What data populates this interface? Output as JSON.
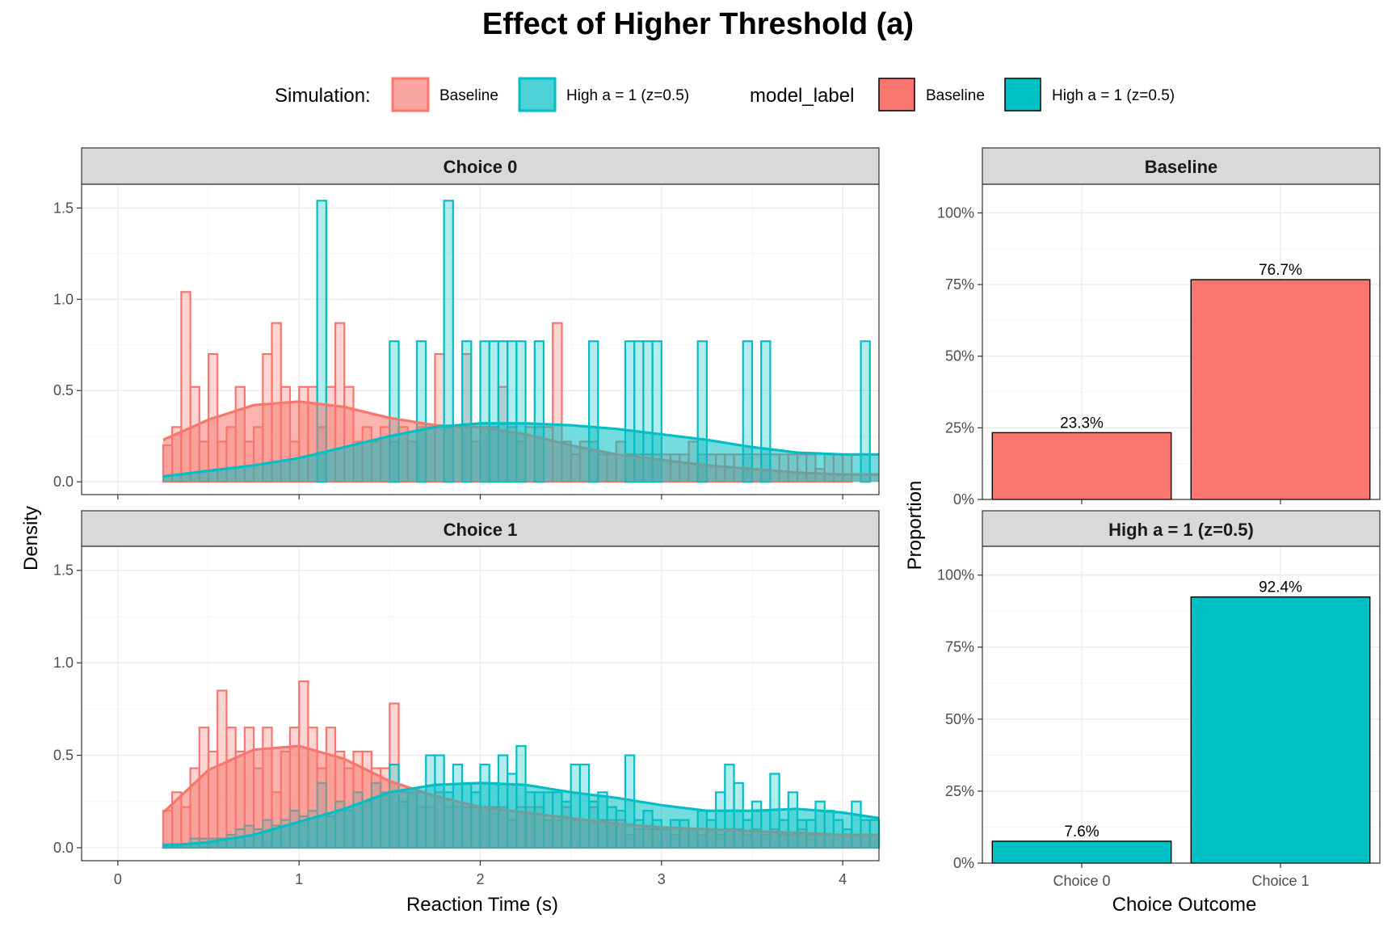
{
  "colors": {
    "baseline": "#F8766D",
    "high": "#00BFC4",
    "strip_fill": "#D9D9D9",
    "grid_major": "#EBEBEB",
    "grid_minor": "#F5F5F5",
    "axis_text": "#4D4D4D"
  },
  "chart_data": [
    {
      "type": "histogram-density",
      "title": "Effect of Higher Threshold (a)",
      "xlabel": "Reaction Time (s)",
      "ylabel": "Density",
      "xlim": [
        -0.2,
        4.2
      ],
      "ylim": [
        -0.07,
        1.63
      ],
      "x_ticks": [
        0,
        1,
        2,
        3,
        4
      ],
      "y_ticks": [
        0.0,
        0.5,
        1.0,
        1.5
      ],
      "y_tick_labels": [
        "0.0",
        "0.5",
        "1.0",
        "1.5"
      ],
      "x_tick_labels": [
        "0",
        "1",
        "2",
        "3",
        "4"
      ],
      "bin_width": 0.05,
      "legend": {
        "fill_title": "Simulation:",
        "fill_entries": [
          "Baseline",
          "High a = 1 (z=0.5)"
        ],
        "color_title": "model_label",
        "color_entries": [
          "Baseline",
          "High a = 1 (z=0.5)"
        ]
      },
      "facets": [
        {
          "label": "Choice 0",
          "series": [
            {
              "name": "Baseline",
              "hist_starts": [
                0.25,
                0.3,
                0.35,
                0.4,
                0.45,
                0.5,
                0.55,
                0.6,
                0.65,
                0.7,
                0.75,
                0.8,
                0.85,
                0.9,
                0.95,
                1.0,
                1.05,
                1.1,
                1.15,
                1.2,
                1.25,
                1.3,
                1.35,
                1.4,
                1.45,
                1.5,
                1.55,
                1.6,
                1.65,
                1.7,
                1.75,
                1.8,
                1.85,
                1.9,
                1.95,
                2.0,
                2.05,
                2.1,
                2.15,
                2.2,
                2.25,
                2.3,
                2.35,
                2.4,
                2.45,
                2.5,
                2.55,
                2.6,
                2.65,
                2.7,
                2.75,
                2.8,
                2.85,
                2.9,
                2.95,
                3.0,
                3.05,
                3.1,
                3.15,
                3.2,
                3.25,
                3.3,
                3.35,
                3.4,
                3.45,
                3.5,
                3.55,
                3.6,
                3.65,
                3.7,
                3.75,
                3.8,
                3.85,
                3.9,
                3.95,
                4.0
              ],
              "hist_values": [
                0.2,
                0.3,
                1.04,
                0.52,
                0.22,
                0.7,
                0.22,
                0.3,
                0.52,
                0.22,
                0.3,
                0.7,
                0.87,
                0.52,
                0.22,
                0.52,
                0.52,
                0.3,
                0.52,
                0.87,
                0.52,
                0.22,
                0.3,
                0.22,
                0.3,
                0.22,
                0.3,
                0.22,
                0.3,
                0.3,
                0.7,
                0.3,
                0.3,
                0.7,
                0.22,
                0.3,
                0.3,
                0.52,
                0.3,
                0.22,
                0.3,
                0.3,
                0.3,
                0.87,
                0.22,
                0.15,
                0.22,
                0.22,
                0.15,
                0.15,
                0.22,
                0.15,
                0.15,
                0.15,
                0.15,
                0.15,
                0.15,
                0.15,
                0.22,
                0.15,
                0.15,
                0.15,
                0.15,
                0.15,
                0.15,
                0.15,
                0.15,
                0.15,
                0.15,
                0.15,
                0.15,
                0.15,
                0.07,
                0.15,
                0.15,
                0.15
              ],
              "density_x": [
                0.25,
                0.5,
                0.75,
                1.0,
                1.25,
                1.5,
                1.75,
                2.0,
                2.25,
                2.5,
                2.75,
                3.0,
                3.25,
                3.5,
                3.75,
                4.0,
                4.2
              ],
              "density_y": [
                0.23,
                0.34,
                0.42,
                0.44,
                0.41,
                0.35,
                0.31,
                0.3,
                0.26,
                0.2,
                0.15,
                0.12,
                0.09,
                0.07,
                0.05,
                0.04,
                0.04
              ]
            },
            {
              "name": "High a = 1 (z=0.5)",
              "hist_starts": [
                1.1,
                1.5,
                1.65,
                1.8,
                1.9,
                2.0,
                2.05,
                2.1,
                2.15,
                2.2,
                2.3,
                2.6,
                2.8,
                2.85,
                2.9,
                2.95,
                3.2,
                3.45,
                3.55,
                4.1
              ],
              "hist_values": [
                1.54,
                0.77,
                0.77,
                1.54,
                0.77,
                0.77,
                0.77,
                0.77,
                0.77,
                0.77,
                0.77,
                0.77,
                0.77,
                0.77,
                0.77,
                0.77,
                0.77,
                0.77,
                0.77,
                0.77
              ],
              "density_x": [
                0.25,
                0.5,
                0.75,
                1.0,
                1.25,
                1.5,
                1.75,
                2.0,
                2.25,
                2.5,
                2.75,
                3.0,
                3.25,
                3.5,
                3.75,
                4.0,
                4.2
              ],
              "density_y": [
                0.03,
                0.06,
                0.09,
                0.13,
                0.19,
                0.25,
                0.3,
                0.32,
                0.32,
                0.31,
                0.29,
                0.26,
                0.23,
                0.19,
                0.16,
                0.15,
                0.15
              ]
            }
          ]
        },
        {
          "label": "Choice 1",
          "series": [
            {
              "name": "Baseline",
              "hist_starts": [
                0.25,
                0.3,
                0.35,
                0.4,
                0.45,
                0.5,
                0.55,
                0.6,
                0.65,
                0.7,
                0.75,
                0.8,
                0.85,
                0.9,
                0.95,
                1.0,
                1.05,
                1.1,
                1.15,
                1.2,
                1.25,
                1.3,
                1.35,
                1.4,
                1.45,
                1.5,
                1.55,
                1.6,
                1.65,
                1.7,
                1.75,
                1.8,
                1.85,
                1.9,
                1.95,
                2.0,
                2.05,
                2.1,
                2.15,
                2.2,
                2.25,
                2.3,
                2.35,
                2.4,
                2.45,
                2.5,
                2.55,
                2.6,
                2.65,
                2.7,
                2.75,
                2.8,
                2.85,
                2.9,
                2.95,
                3.0,
                3.05,
                3.1,
                3.15,
                3.2,
                3.25,
                3.3,
                3.35,
                3.4,
                3.45,
                3.5,
                3.55,
                3.6,
                3.65,
                3.7,
                3.75,
                3.8,
                3.85,
                3.9,
                3.95,
                4.0,
                4.05,
                4.1,
                4.15
              ],
              "hist_values": [
                0.2,
                0.3,
                0.22,
                0.43,
                0.65,
                0.52,
                0.85,
                0.65,
                0.52,
                0.65,
                0.43,
                0.65,
                0.3,
                0.52,
                0.65,
                0.9,
                0.65,
                0.43,
                0.65,
                0.52,
                0.43,
                0.52,
                0.52,
                0.43,
                0.43,
                0.78,
                0.3,
                0.3,
                0.22,
                0.22,
                0.3,
                0.22,
                0.22,
                0.22,
                0.22,
                0.22,
                0.22,
                0.22,
                0.15,
                0.22,
                0.22,
                0.22,
                0.15,
                0.15,
                0.22,
                0.15,
                0.15,
                0.22,
                0.15,
                0.15,
                0.15,
                0.07,
                0.1,
                0.1,
                0.1,
                0.1,
                0.07,
                0.1,
                0.1,
                0.07,
                0.1,
                0.07,
                0.1,
                0.1,
                0.07,
                0.1,
                0.07,
                0.1,
                0.07,
                0.07,
                0.1,
                0.07,
                0.07,
                0.07,
                0.07,
                0.07,
                0.07,
                0.07,
                0.07
              ],
              "density_x": [
                0.25,
                0.5,
                0.75,
                1.0,
                1.25,
                1.5,
                1.75,
                2.0,
                2.25,
                2.5,
                2.75,
                3.0,
                3.25,
                3.5,
                3.75,
                4.0,
                4.2
              ],
              "density_y": [
                0.19,
                0.42,
                0.53,
                0.55,
                0.48,
                0.36,
                0.28,
                0.22,
                0.19,
                0.16,
                0.13,
                0.11,
                0.1,
                0.09,
                0.08,
                0.07,
                0.07
              ]
            },
            {
              "name": "High a = 1 (z=0.5)",
              "hist_starts": [
                0.25,
                0.3,
                0.35,
                0.4,
                0.45,
                0.5,
                0.55,
                0.6,
                0.65,
                0.7,
                0.75,
                0.8,
                0.85,
                0.9,
                0.95,
                1.0,
                1.05,
                1.1,
                1.15,
                1.2,
                1.25,
                1.3,
                1.35,
                1.4,
                1.45,
                1.5,
                1.55,
                1.6,
                1.65,
                1.7,
                1.75,
                1.8,
                1.85,
                1.9,
                1.95,
                2.0,
                2.05,
                2.1,
                2.15,
                2.2,
                2.25,
                2.3,
                2.35,
                2.4,
                2.45,
                2.5,
                2.55,
                2.6,
                2.65,
                2.7,
                2.75,
                2.8,
                2.85,
                2.9,
                2.95,
                3.0,
                3.05,
                3.1,
                3.15,
                3.2,
                3.25,
                3.3,
                3.35,
                3.4,
                3.45,
                3.5,
                3.55,
                3.6,
                3.65,
                3.7,
                3.75,
                3.8,
                3.85,
                3.9,
                3.95,
                4.0,
                4.05,
                4.1,
                4.15
              ],
              "hist_values": [
                0.02,
                0.02,
                0.02,
                0.05,
                0.05,
                0.05,
                0.05,
                0.07,
                0.1,
                0.12,
                0.1,
                0.15,
                0.12,
                0.15,
                0.2,
                0.17,
                0.2,
                0.35,
                0.17,
                0.25,
                0.2,
                0.3,
                0.25,
                0.35,
                0.3,
                0.45,
                0.25,
                0.3,
                0.3,
                0.5,
                0.5,
                0.3,
                0.45,
                0.35,
                0.3,
                0.45,
                0.35,
                0.5,
                0.4,
                0.55,
                0.3,
                0.3,
                0.3,
                0.3,
                0.25,
                0.45,
                0.45,
                0.25,
                0.3,
                0.22,
                0.2,
                0.5,
                0.15,
                0.2,
                0.15,
                0.1,
                0.15,
                0.15,
                0.1,
                0.2,
                0.15,
                0.3,
                0.45,
                0.35,
                0.15,
                0.25,
                0.2,
                0.4,
                0.15,
                0.3,
                0.15,
                0.15,
                0.25,
                0.2,
                0.15,
                0.1,
                0.25,
                0.15,
                0.15
              ],
              "density_x": [
                0.25,
                0.5,
                0.75,
                1.0,
                1.25,
                1.5,
                1.75,
                2.0,
                2.25,
                2.5,
                2.75,
                3.0,
                3.25,
                3.5,
                3.75,
                4.0,
                4.2
              ],
              "density_y": [
                0.01,
                0.03,
                0.07,
                0.14,
                0.21,
                0.3,
                0.34,
                0.35,
                0.34,
                0.3,
                0.27,
                0.23,
                0.2,
                0.2,
                0.21,
                0.19,
                0.16
              ]
            }
          ]
        }
      ]
    },
    {
      "type": "bar",
      "xlabel": "Choice Outcome",
      "ylabel": "Proportion",
      "categories": [
        "Choice 0",
        "Choice 1"
      ],
      "ylim": [
        0,
        1.1
      ],
      "y_ticks": [
        0,
        0.25,
        0.5,
        0.75,
        1.0
      ],
      "y_tick_labels": [
        "0%",
        "25%",
        "50%",
        "75%",
        "100%"
      ],
      "facets": [
        {
          "label": "Baseline",
          "series": "Baseline",
          "values": [
            0.233,
            0.767
          ],
          "data_labels": [
            "23.3%",
            "76.7%"
          ]
        },
        {
          "label": "High a = 1 (z=0.5)",
          "series": "High a = 1 (z=0.5)",
          "values": [
            0.076,
            0.924
          ],
          "data_labels": [
            "7.6%",
            "92.4%"
          ]
        }
      ]
    }
  ]
}
